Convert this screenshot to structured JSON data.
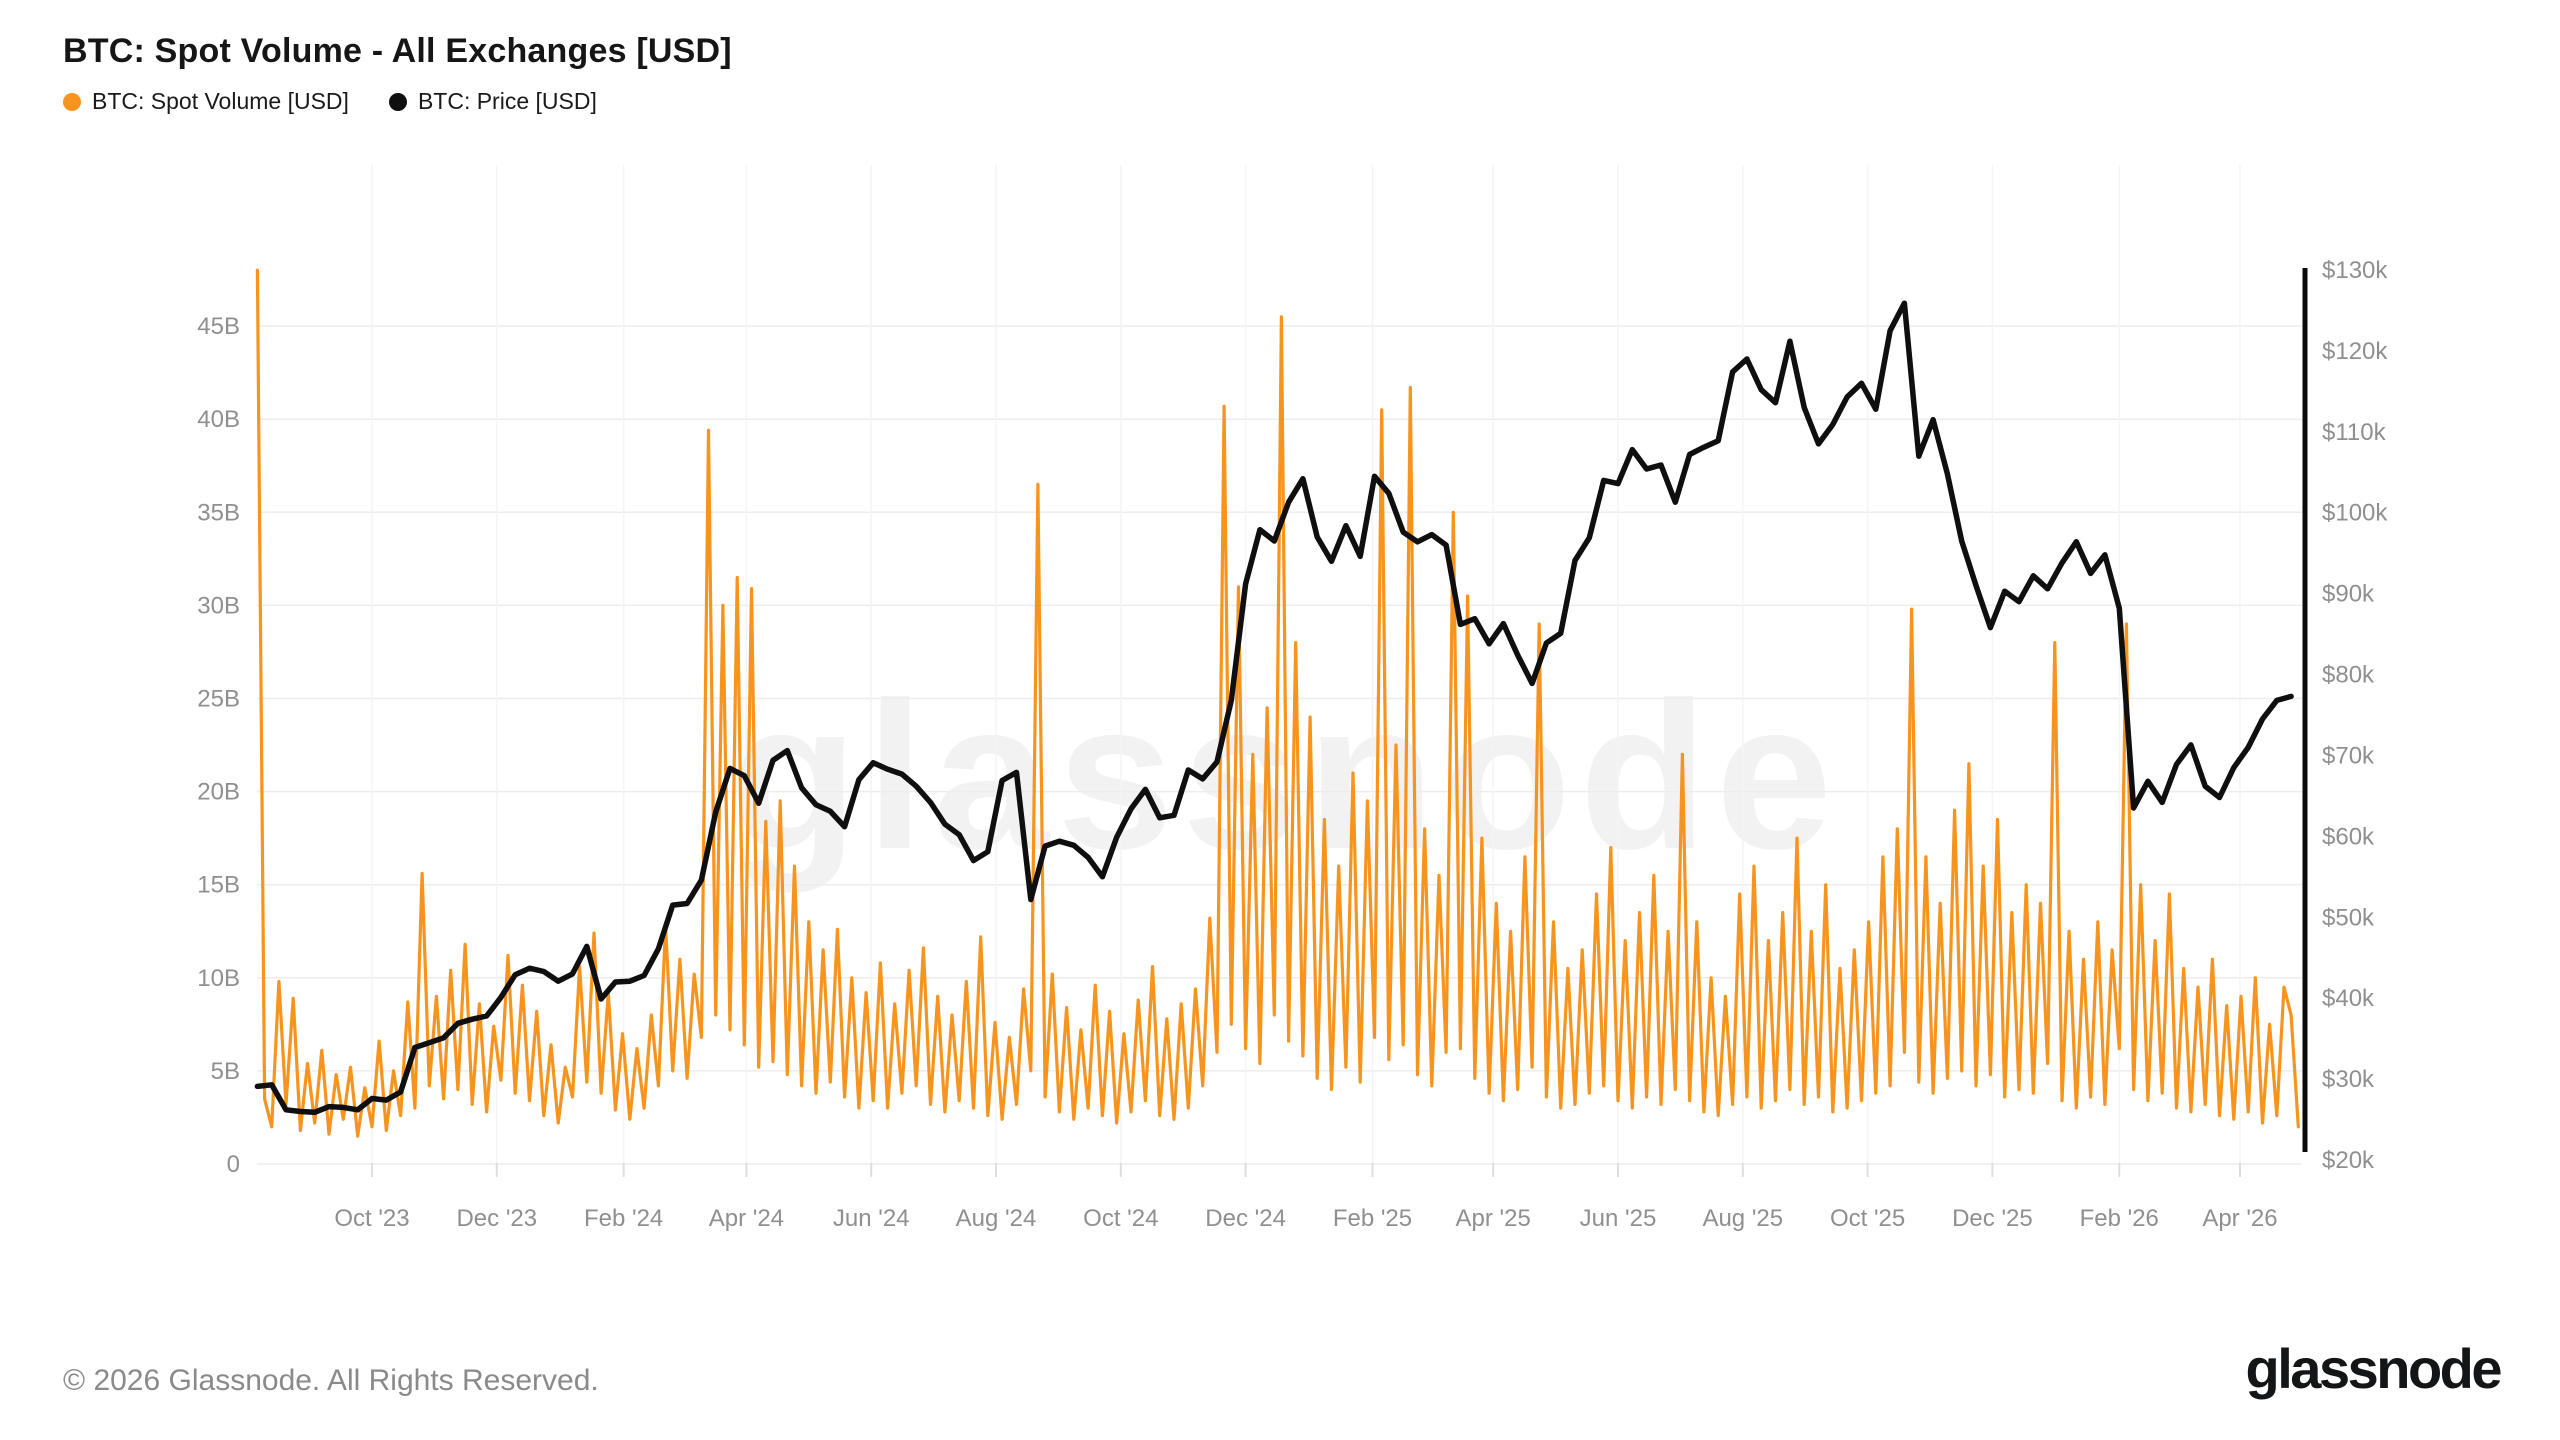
{
  "title": "BTC: Spot Volume - All Exchanges [USD]",
  "legend": {
    "items": [
      {
        "label": "BTC: Spot Volume [USD]",
        "color": "#F7941D"
      },
      {
        "label": "BTC: Price [USD]",
        "color": "#0F0F10"
      }
    ]
  },
  "watermark": {
    "text": "glassnode"
  },
  "footer": {
    "copyright": "© 2026 Glassnode. All Rights Reserved.",
    "brand": "glassnode"
  },
  "theme": {
    "volume_color": "#F7941D",
    "price_color": "#0F0F10",
    "grid_color_h": "#EDEDED",
    "grid_color_v": "#F4F4F4",
    "axis_tick_color": "#DEDEDE",
    "right_axis_line_color": "#0B0B0B",
    "tick_text_color": "#8F8F8F",
    "background": "#FFFFFF"
  },
  "chart_data": {
    "type": "line",
    "title": "BTC: Spot Volume - All Exchanges [USD]",
    "grid": true,
    "legend_position": "top-left",
    "x_range": [
      "2023-08-06",
      "2026-04-30"
    ],
    "sampling": "weekly; volume has 2 vertices per week (week-start value, mid-week value)",
    "left_axis": {
      "title": "Spot Volume [USD, billions]",
      "range": [
        0,
        51.8
      ],
      "tick_values": [
        45,
        40,
        35,
        30,
        25,
        20,
        15,
        10,
        5,
        0
      ],
      "tick_labels": [
        "45B",
        "40B",
        "35B",
        "30B",
        "25B",
        "20B",
        "15B",
        "10B",
        "5B",
        "0"
      ]
    },
    "right_axis": {
      "title": "Price [USD, thousands]",
      "range": [
        20,
        130
      ],
      "tick_values": [
        130,
        120,
        110,
        100,
        90,
        80,
        70,
        60,
        50,
        40,
        30,
        20
      ],
      "tick_labels": [
        "$130k",
        "$120k",
        "$110k",
        "$100k",
        "$90k",
        "$80k",
        "$70k",
        "$60k",
        "$50k",
        "$40k",
        "$30k",
        "$20k"
      ]
    },
    "x_ticks": [
      {
        "label": "Oct '23",
        "date": "2023-10-01"
      },
      {
        "label": "Dec '23",
        "date": "2023-12-01"
      },
      {
        "label": "Feb '24",
        "date": "2024-02-01"
      },
      {
        "label": "Apr '24",
        "date": "2024-04-01"
      },
      {
        "label": "Jun '24",
        "date": "2024-06-01"
      },
      {
        "label": "Aug '24",
        "date": "2024-08-01"
      },
      {
        "label": "Oct '24",
        "date": "2024-10-01"
      },
      {
        "label": "Dec '24",
        "date": "2024-12-01"
      },
      {
        "label": "Feb '25",
        "date": "2025-02-01"
      },
      {
        "label": "Apr '25",
        "date": "2025-04-01"
      },
      {
        "label": "Jun '25",
        "date": "2025-06-01"
      },
      {
        "label": "Aug '25",
        "date": "2025-08-01"
      },
      {
        "label": "Oct '25",
        "date": "2025-10-01"
      },
      {
        "label": "Dec '25",
        "date": "2025-12-01"
      },
      {
        "label": "Feb '26",
        "date": "2026-02-01"
      },
      {
        "label": "Apr '26",
        "date": "2026-04-01"
      }
    ],
    "series": [
      {
        "name": "BTC: Spot Volume [USD]",
        "axis": "left",
        "unit": "billion USD",
        "color": "#F7941D",
        "start": "2023-08-06",
        "interval_days": 7,
        "week_pairs": [
          [
            48.0,
            3.5
          ],
          [
            2.0,
            9.8
          ],
          [
            3.2,
            8.9
          ],
          [
            1.8,
            5.4
          ],
          [
            2.2,
            6.1
          ],
          [
            1.6,
            4.8
          ],
          [
            2.4,
            5.2
          ],
          [
            1.5,
            4.1
          ],
          [
            2.0,
            6.6
          ],
          [
            1.8,
            5.0
          ],
          [
            2.6,
            8.7
          ],
          [
            3.0,
            15.6
          ],
          [
            4.2,
            9.0
          ],
          [
            3.5,
            10.4
          ],
          [
            4.0,
            11.8
          ],
          [
            3.2,
            8.6
          ],
          [
            2.8,
            7.4
          ],
          [
            4.5,
            11.2
          ],
          [
            3.8,
            9.6
          ],
          [
            3.4,
            8.2
          ],
          [
            2.6,
            6.4
          ],
          [
            2.2,
            5.2
          ],
          [
            3.6,
            10.6
          ],
          [
            4.4,
            12.4
          ],
          [
            3.8,
            9.2
          ],
          [
            2.9,
            7.0
          ],
          [
            2.4,
            6.2
          ],
          [
            3.0,
            8.0
          ],
          [
            4.2,
            12.8
          ],
          [
            5.0,
            11.0
          ],
          [
            4.6,
            10.2
          ],
          [
            6.8,
            39.4
          ],
          [
            8.0,
            30.0
          ],
          [
            7.2,
            31.5
          ],
          [
            6.4,
            30.9
          ],
          [
            5.2,
            18.4
          ],
          [
            5.5,
            19.5
          ],
          [
            4.8,
            16.0
          ],
          [
            4.2,
            13.0
          ],
          [
            3.8,
            11.5
          ],
          [
            4.4,
            12.6
          ],
          [
            3.6,
            10.0
          ],
          [
            3.0,
            9.2
          ],
          [
            3.4,
            10.8
          ],
          [
            3.0,
            8.6
          ],
          [
            3.8,
            10.4
          ],
          [
            4.2,
            11.6
          ],
          [
            3.2,
            9.0
          ],
          [
            2.8,
            8.0
          ],
          [
            3.4,
            9.8
          ],
          [
            3.0,
            12.2
          ],
          [
            2.6,
            7.6
          ],
          [
            2.4,
            6.8
          ],
          [
            3.2,
            9.4
          ],
          [
            5.0,
            36.5
          ],
          [
            3.6,
            10.2
          ],
          [
            2.8,
            8.4
          ],
          [
            2.4,
            7.2
          ],
          [
            3.0,
            9.6
          ],
          [
            2.6,
            8.2
          ],
          [
            2.2,
            7.0
          ],
          [
            2.8,
            8.8
          ],
          [
            3.4,
            10.6
          ],
          [
            2.6,
            7.8
          ],
          [
            2.4,
            8.6
          ],
          [
            3.0,
            9.4
          ],
          [
            4.2,
            13.2
          ],
          [
            6.0,
            40.7
          ],
          [
            7.5,
            31.0
          ],
          [
            6.2,
            22.0
          ],
          [
            5.4,
            24.5
          ],
          [
            8.0,
            45.5
          ],
          [
            6.6,
            28.0
          ],
          [
            5.8,
            24.0
          ],
          [
            4.6,
            18.5
          ],
          [
            4.0,
            16.0
          ],
          [
            5.2,
            21.0
          ],
          [
            4.4,
            19.5
          ],
          [
            6.8,
            40.5
          ],
          [
            5.6,
            22.5
          ],
          [
            6.4,
            41.7
          ],
          [
            4.8,
            18.0
          ],
          [
            4.2,
            15.5
          ],
          [
            6.0,
            35.0
          ],
          [
            6.2,
            30.5
          ],
          [
            4.6,
            17.5
          ],
          [
            3.8,
            14.0
          ],
          [
            3.4,
            12.5
          ],
          [
            4.0,
            16.5
          ],
          [
            5.2,
            29.0
          ],
          [
            3.6,
            13.0
          ],
          [
            3.0,
            10.5
          ],
          [
            3.2,
            11.5
          ],
          [
            3.8,
            14.5
          ],
          [
            4.2,
            17.0
          ],
          [
            3.4,
            12.0
          ],
          [
            3.0,
            13.5
          ],
          [
            3.6,
            15.5
          ],
          [
            3.2,
            12.5
          ],
          [
            4.0,
            22.0
          ],
          [
            3.4,
            13.0
          ],
          [
            2.8,
            10.0
          ],
          [
            2.6,
            9.0
          ],
          [
            3.2,
            14.5
          ],
          [
            3.6,
            16.0
          ],
          [
            3.0,
            12.0
          ],
          [
            3.4,
            13.5
          ],
          [
            4.0,
            17.5
          ],
          [
            3.2,
            12.5
          ],
          [
            3.6,
            15.0
          ],
          [
            2.8,
            10.5
          ],
          [
            3.0,
            11.5
          ],
          [
            3.4,
            13.0
          ],
          [
            3.8,
            16.5
          ],
          [
            4.2,
            18.0
          ],
          [
            6.0,
            29.8
          ],
          [
            4.4,
            16.5
          ],
          [
            3.8,
            14.0
          ],
          [
            4.6,
            19.0
          ],
          [
            5.0,
            21.5
          ],
          [
            4.2,
            16.0
          ],
          [
            4.8,
            18.5
          ],
          [
            3.6,
            13.5
          ],
          [
            4.0,
            15.0
          ],
          [
            3.8,
            14.0
          ],
          [
            5.4,
            28.0
          ],
          [
            3.4,
            12.5
          ],
          [
            3.0,
            11.0
          ],
          [
            3.6,
            13.0
          ],
          [
            3.2,
            11.5
          ],
          [
            6.2,
            29.0
          ],
          [
            4.0,
            15.0
          ],
          [
            3.4,
            12.0
          ],
          [
            3.8,
            14.5
          ],
          [
            3.0,
            10.5
          ],
          [
            2.8,
            9.5
          ],
          [
            3.2,
            11.0
          ],
          [
            2.6,
            8.5
          ],
          [
            2.4,
            9.0
          ],
          [
            2.8,
            10.0
          ],
          [
            2.2,
            7.5
          ],
          [
            2.6,
            9.5
          ],
          [
            8.0,
            2.0
          ]
        ]
      },
      {
        "name": "BTC: Price [USD]",
        "axis": "right",
        "unit": "thousand USD",
        "color": "#0F0F10",
        "start": "2023-08-06",
        "interval_days": 7,
        "values": [
          29.1,
          29.3,
          26.2,
          26.0,
          25.9,
          26.6,
          26.5,
          26.2,
          27.6,
          27.4,
          28.4,
          33.9,
          34.5,
          35.1,
          36.9,
          37.4,
          37.8,
          40.1,
          42.9,
          43.7,
          43.3,
          42.1,
          43.0,
          46.4,
          39.9,
          42.0,
          42.1,
          42.8,
          46.1,
          51.5,
          51.7,
          54.6,
          63.0,
          68.4,
          67.5,
          64.1,
          69.4,
          70.6,
          66.0,
          63.9,
          63.1,
          61.2,
          67.0,
          69.1,
          68.3,
          67.7,
          66.2,
          64.2,
          61.5,
          60.2,
          57.0,
          58.1,
          66.9,
          67.9,
          52.2,
          58.8,
          59.4,
          58.9,
          57.4,
          55.0,
          59.9,
          63.4,
          65.8,
          62.3,
          62.6,
          68.2,
          67.1,
          69.2,
          76.8,
          91.2,
          97.9,
          96.5,
          101.3,
          104.2,
          97.0,
          94.0,
          98.4,
          94.6,
          104.5,
          102.4,
          97.6,
          96.4,
          97.3,
          96.0,
          86.2,
          86.9,
          83.8,
          86.3,
          82.4,
          78.9,
          83.9,
          85.1,
          94.1,
          96.9,
          104.0,
          103.6,
          107.8,
          105.4,
          105.9,
          101.3,
          107.2,
          108.1,
          108.9,
          117.4,
          119.0,
          115.2,
          113.6,
          121.2,
          113.0,
          108.5,
          110.9,
          114.3,
          116.0,
          112.8,
          122.5,
          125.9,
          107.0,
          111.5,
          104.8,
          96.5,
          91.0,
          85.8,
          90.3,
          89.0,
          92.2,
          90.6,
          93.8,
          96.4,
          92.5,
          94.8,
          88.2,
          63.5,
          66.8,
          64.2,
          68.9,
          71.3,
          66.2,
          64.8,
          68.5,
          71.0,
          74.5,
          76.8,
          77.3
        ]
      }
    ]
  }
}
